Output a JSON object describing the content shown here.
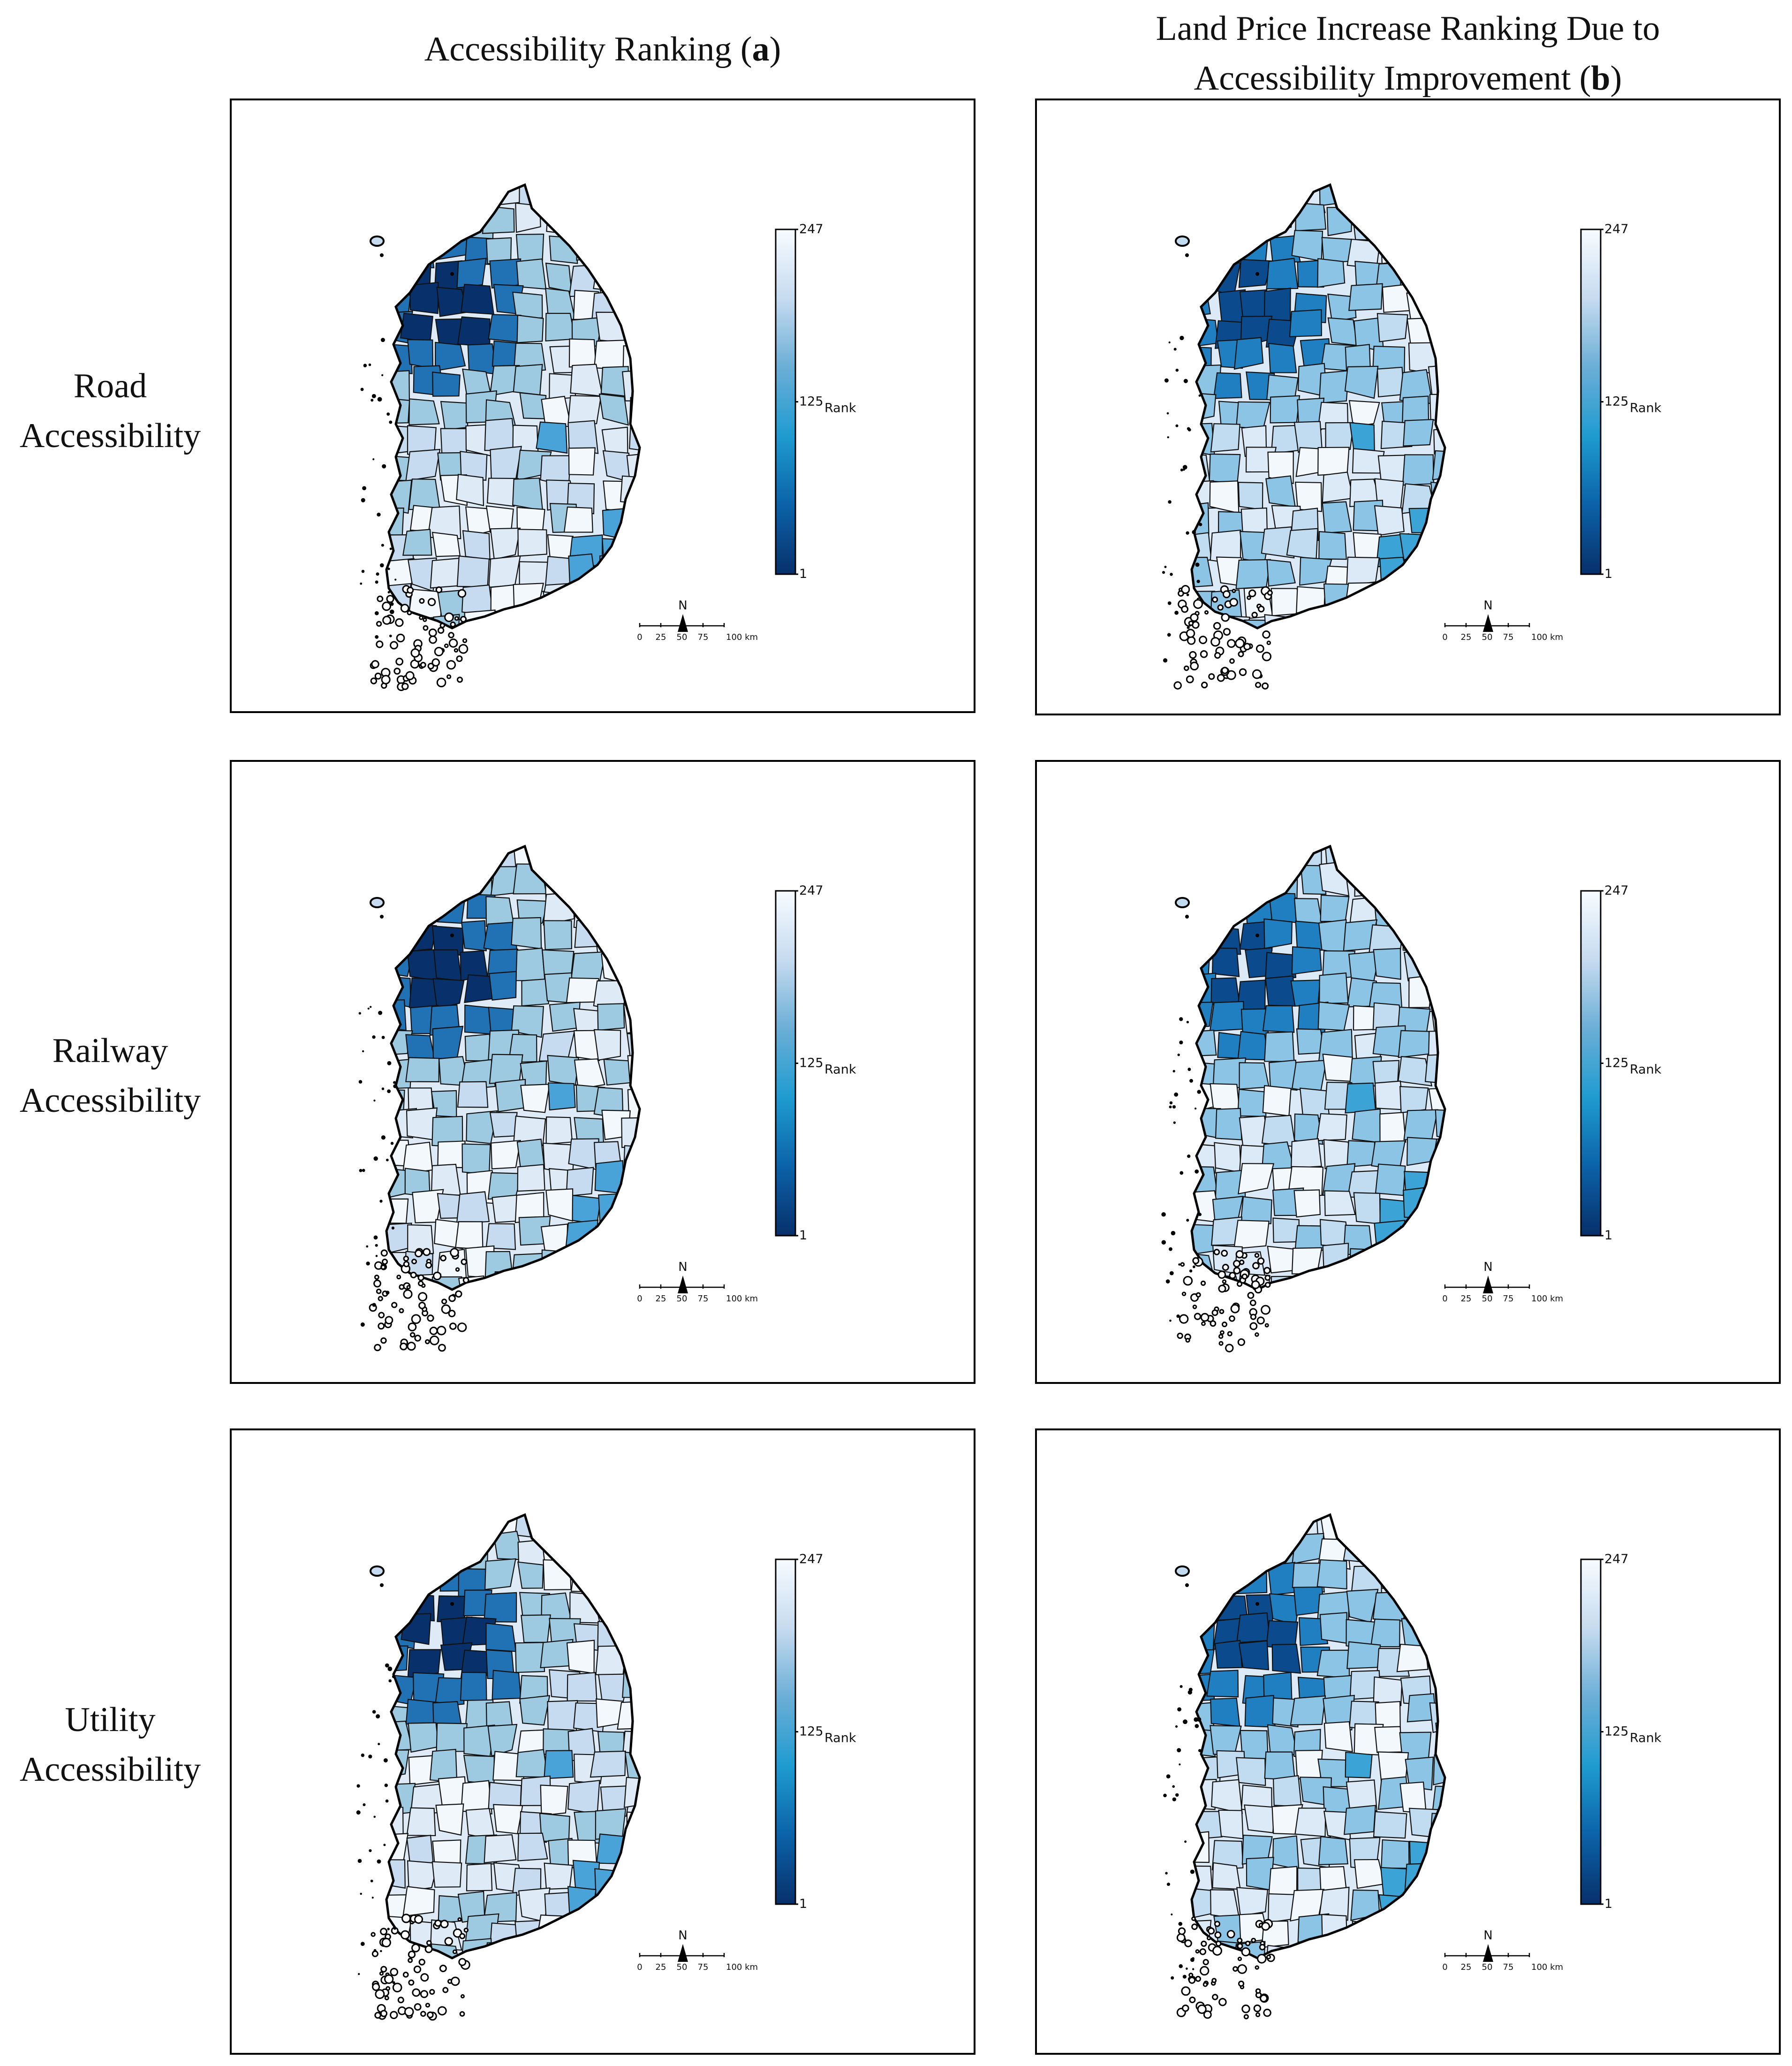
{
  "column_headers": [
    {
      "text": "Accessibility Ranking (",
      "letter": "a",
      "close": ")"
    },
    {
      "line1": "Land Price Increase Ranking Due to",
      "text": "Accessibility Improvement (",
      "letter": "b",
      "close": ")"
    }
  ],
  "rows": [
    {
      "line1": "Road",
      "line2": "Accessibility"
    },
    {
      "line1": "Railway",
      "line2": "Accessibility"
    },
    {
      "line1": "Utility",
      "line2": "Accessibility"
    }
  ],
  "legend": {
    "max": "247",
    "mid": "125",
    "min": "1",
    "title": "Rank",
    "colors": [
      "#f7fbff",
      "#c6dbef",
      "#6baed6",
      "#1f9bd0",
      "#0b62a8",
      "#08306b"
    ]
  },
  "north_arrow": "N",
  "scale_bar": {
    "ticks": [
      "0",
      "25",
      "50",
      "75",
      "100 km"
    ]
  },
  "map_colors": {
    "a": [
      "#08306b",
      "#2171b5",
      "#4aa3d8",
      "#9ecae1",
      "#c6dbef",
      "#deebf7",
      "#f3f8fd"
    ],
    "b": [
      "#0b4a8c",
      "#1f7fc0",
      "#3ba3d6",
      "#8cc4e6",
      "#c1dcf0",
      "#dce9f6",
      "#f3f8fd"
    ]
  }
}
